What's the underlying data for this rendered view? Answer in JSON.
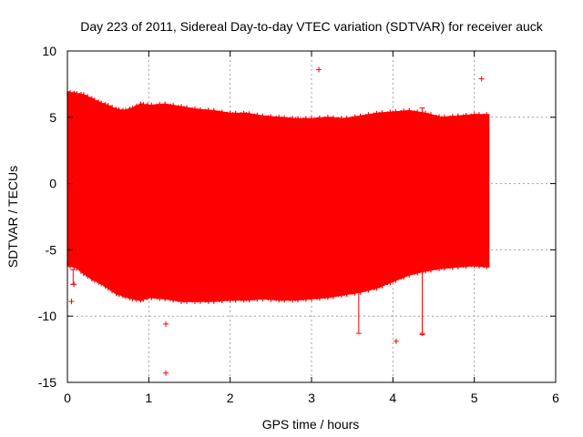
{
  "chart_data": {
    "type": "scatter",
    "title": "Day 223 of 2011, Sidereal Day-to-day VTEC variation (SDTVAR) for receiver auck",
    "xlabel": "GPS time / hours",
    "ylabel": "SDTVAR / TECUs",
    "xlim": [
      0,
      6
    ],
    "ylim": [
      -15,
      10
    ],
    "xticks": [
      0,
      1,
      2,
      3,
      4,
      5,
      6
    ],
    "yticks": [
      -15,
      -10,
      -5,
      0,
      5,
      10
    ],
    "xtick_labels": [
      "0",
      "1",
      "2",
      "3",
      "4",
      "5",
      "6"
    ],
    "ytick_labels": [
      "-15",
      "-10",
      "-5",
      "0",
      "5",
      "10"
    ],
    "grid": true,
    "series_color": "#ff0000",
    "band_x_range": [
      0,
      5.18
    ],
    "upper_envelope": [
      [
        0.0,
        6.9
      ],
      [
        0.1,
        6.8
      ],
      [
        0.2,
        6.7
      ],
      [
        0.3,
        6.4
      ],
      [
        0.4,
        6.1
      ],
      [
        0.5,
        5.9
      ],
      [
        0.6,
        5.6
      ],
      [
        0.7,
        5.5
      ],
      [
        0.8,
        5.7
      ],
      [
        0.9,
        6.0
      ],
      [
        1.0,
        5.9
      ],
      [
        1.2,
        6.0
      ],
      [
        1.4,
        5.8
      ],
      [
        1.6,
        5.6
      ],
      [
        1.8,
        5.5
      ],
      [
        2.0,
        5.3
      ],
      [
        2.2,
        5.3
      ],
      [
        2.4,
        5.1
      ],
      [
        2.6,
        5.0
      ],
      [
        2.8,
        4.9
      ],
      [
        3.0,
        4.9
      ],
      [
        3.2,
        5.0
      ],
      [
        3.4,
        4.9
      ],
      [
        3.6,
        5.1
      ],
      [
        3.8,
        5.3
      ],
      [
        4.0,
        5.4
      ],
      [
        4.2,
        5.5
      ],
      [
        4.4,
        5.3
      ],
      [
        4.6,
        5.0
      ],
      [
        4.8,
        5.1
      ],
      [
        5.0,
        5.2
      ],
      [
        5.18,
        5.2
      ]
    ],
    "lower_envelope": [
      [
        0.0,
        -6.2
      ],
      [
        0.1,
        -6.3
      ],
      [
        0.2,
        -6.8
      ],
      [
        0.3,
        -7.2
      ],
      [
        0.4,
        -7.5
      ],
      [
        0.5,
        -7.9
      ],
      [
        0.6,
        -8.3
      ],
      [
        0.7,
        -8.5
      ],
      [
        0.8,
        -8.7
      ],
      [
        0.9,
        -8.8
      ],
      [
        1.0,
        -8.6
      ],
      [
        1.2,
        -8.7
      ],
      [
        1.4,
        -8.9
      ],
      [
        1.6,
        -8.9
      ],
      [
        1.8,
        -8.9
      ],
      [
        2.0,
        -8.8
      ],
      [
        2.2,
        -8.8
      ],
      [
        2.4,
        -8.7
      ],
      [
        2.6,
        -8.8
      ],
      [
        2.8,
        -8.8
      ],
      [
        3.0,
        -8.7
      ],
      [
        3.2,
        -8.6
      ],
      [
        3.4,
        -8.4
      ],
      [
        3.6,
        -8.2
      ],
      [
        3.8,
        -7.9
      ],
      [
        4.0,
        -7.4
      ],
      [
        4.2,
        -6.9
      ],
      [
        4.4,
        -6.6
      ],
      [
        4.6,
        -6.4
      ],
      [
        4.8,
        -6.3
      ],
      [
        5.0,
        -6.2
      ],
      [
        5.18,
        -6.3
      ]
    ],
    "outliers": [
      {
        "x": 0.05,
        "y": -8.9
      },
      {
        "x": 0.08,
        "y": -7.6
      },
      {
        "x": 1.21,
        "y": -10.6
      },
      {
        "x": 1.21,
        "y": -14.3
      },
      {
        "x": 3.09,
        "y": 8.6
      },
      {
        "x": 4.04,
        "y": -11.9
      },
      {
        "x": 4.36,
        "y": -11.3
      },
      {
        "x": 5.09,
        "y": 7.9
      }
    ],
    "error_bars": [
      {
        "x": 0.07,
        "low": -7.6,
        "high": -6.5
      },
      {
        "x": 3.58,
        "low": -11.3,
        "high": -8.2
      },
      {
        "x": 4.36,
        "low": -11.4,
        "high": -6.6
      },
      {
        "x": 4.36,
        "low": 5.0,
        "high": 5.7
      }
    ]
  }
}
